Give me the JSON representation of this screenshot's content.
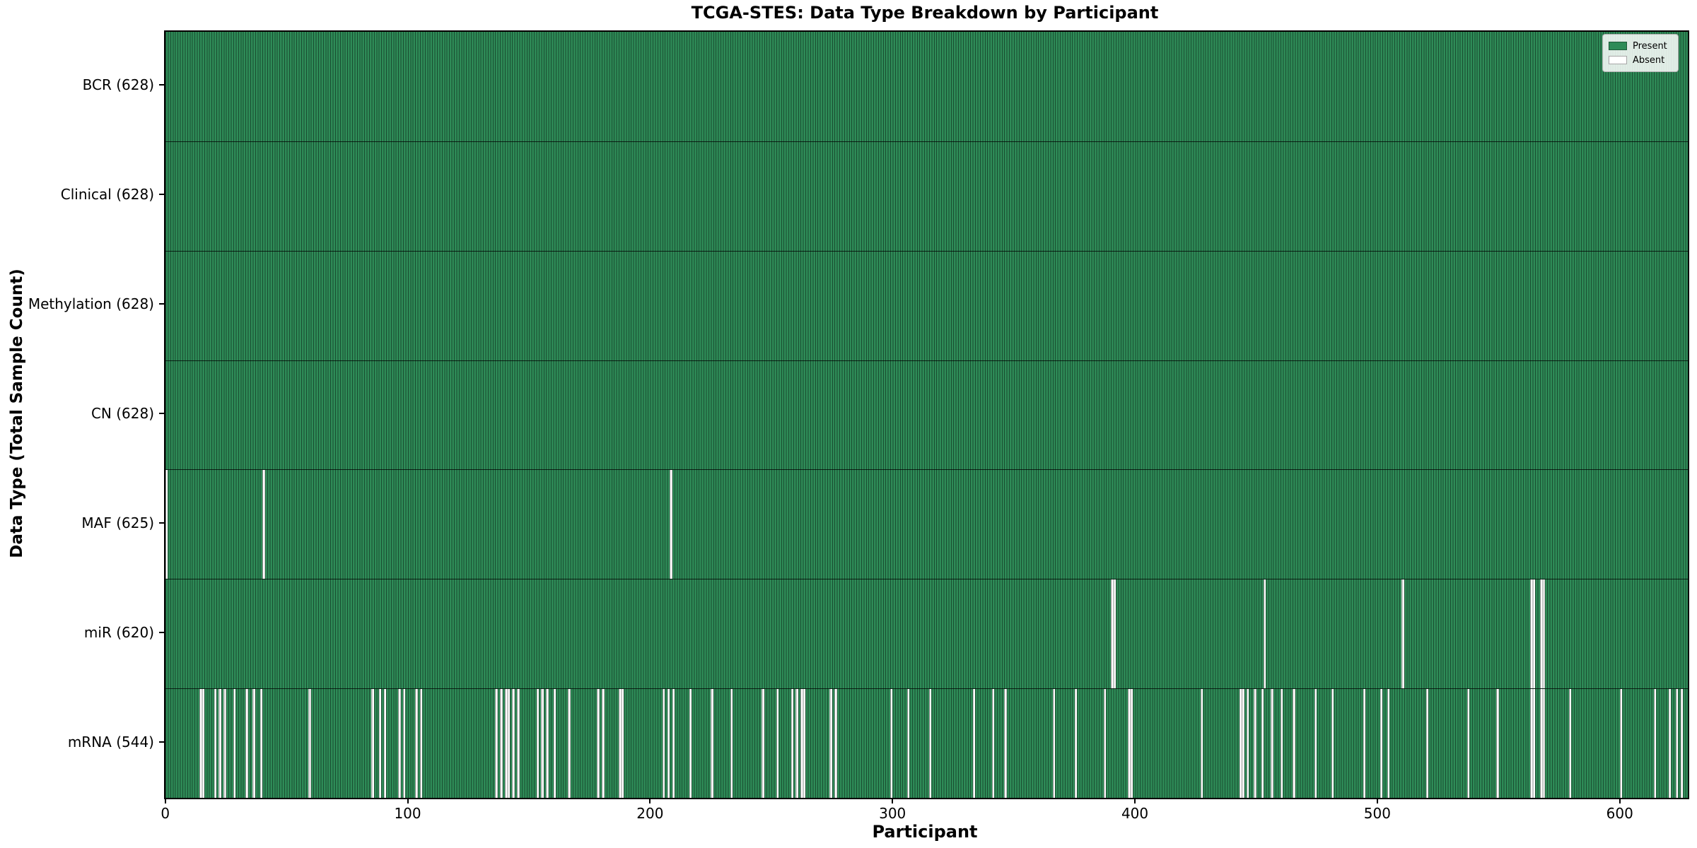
{
  "chart_data": {
    "type": "heatmap",
    "title": "TCGA-STES: Data Type Breakdown by Participant",
    "xlabel": "Participant",
    "ylabel": "Data Type (Total Sample Count)",
    "x_ticks": [
      0,
      100,
      200,
      300,
      400,
      500,
      600
    ],
    "n_participants": 628,
    "grid": false,
    "legend_position": "upper right",
    "legend": [
      {
        "label": "Present",
        "color": "#2E8B57"
      },
      {
        "label": "Absent",
        "color": "#FFFFFF"
      }
    ],
    "colors": {
      "present": "#2E8B57",
      "absent": "#FFFFFF",
      "bar_edge": "#000000",
      "row_separator": "#000000"
    },
    "rows": [
      {
        "label": "BCR (628)",
        "data_type": "BCR",
        "present_count": 628,
        "absent_participants": []
      },
      {
        "label": "Clinical (628)",
        "data_type": "Clinical",
        "present_count": 628,
        "absent_participants": []
      },
      {
        "label": "Methylation (628)",
        "data_type": "Methylation",
        "present_count": 628,
        "absent_participants": []
      },
      {
        "label": "CN (628)",
        "data_type": "CN",
        "present_count": 628,
        "absent_participants": []
      },
      {
        "label": "MAF (625)",
        "data_type": "MAF",
        "present_count": 625,
        "absent_participants": [
          0,
          40,
          208
        ]
      },
      {
        "label": "miR (620)",
        "data_type": "miR",
        "present_count": 620,
        "absent_participants": [
          390,
          391,
          453,
          510,
          563,
          564,
          567,
          568
        ]
      },
      {
        "label": "mRNA (544)",
        "data_type": "mRNA",
        "present_count": 544,
        "absent_participants": [
          14,
          15,
          20,
          22,
          24,
          28,
          33,
          36,
          39,
          59,
          85,
          88,
          90,
          96,
          98,
          103,
          105,
          136,
          138,
          140,
          141,
          143,
          145,
          153,
          155,
          157,
          160,
          166,
          178,
          180,
          187,
          188,
          205,
          207,
          209,
          216,
          225,
          233,
          246,
          252,
          258,
          260,
          262,
          263,
          274,
          276,
          299,
          306,
          315,
          333,
          341,
          346,
          366,
          375,
          387,
          397,
          398,
          427,
          443,
          444,
          446,
          449,
          452,
          456,
          460,
          465,
          474,
          481,
          494,
          501,
          504,
          520,
          537,
          549,
          563,
          564,
          567,
          568,
          579,
          600,
          614,
          620,
          623,
          625
        ]
      }
    ]
  }
}
